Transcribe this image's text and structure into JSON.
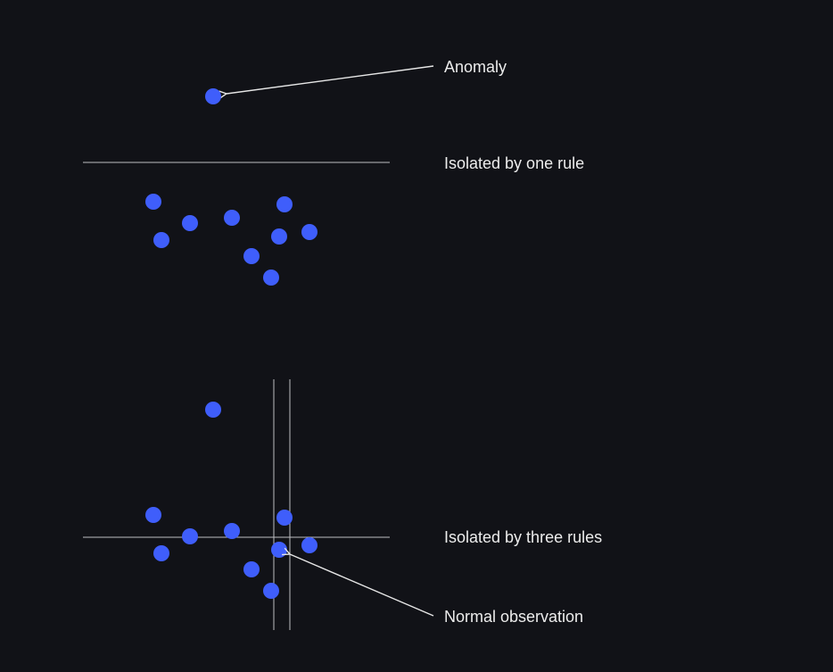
{
  "labels": {
    "anomaly": "Anomaly",
    "one_rule": "Isolated by one rule",
    "three_rules": "Isolated by three rules",
    "normal": "Normal observation"
  },
  "colors": {
    "background": "#111217",
    "point": "#3F5EFB",
    "line": "#BDBDC2",
    "text": "#ECECEC"
  }
}
